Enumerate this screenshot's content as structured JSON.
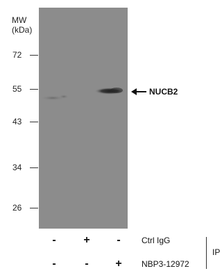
{
  "mw": {
    "title_line1": "MW",
    "title_line2": "(kDa)"
  },
  "markers": [
    "72",
    "55",
    "43",
    "34",
    "26"
  ],
  "target": {
    "label": "NUCB2"
  },
  "rows": [
    {
      "label": "Ctrl IgG",
      "signs": [
        "-",
        "+",
        "-"
      ]
    },
    {
      "label": "NBP3-12972",
      "signs": [
        "-",
        "-",
        "+"
      ]
    }
  ],
  "bracket_label": "IP",
  "colors": {
    "membrane": "#8c8c8c",
    "band": "#3a3a3a",
    "text": "#111111"
  }
}
